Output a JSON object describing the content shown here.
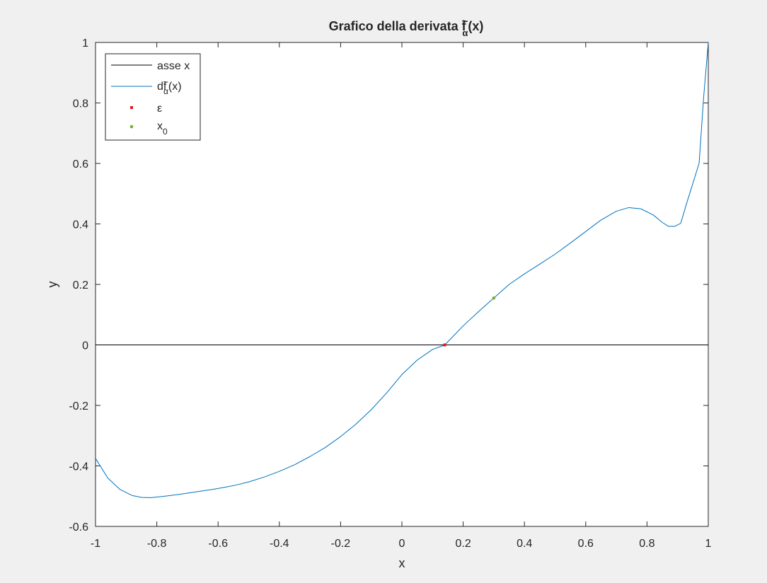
{
  "chart_data": {
    "type": "line",
    "title": {
      "main": "Grafico della derivata f",
      "accent": "~",
      "sub": "α",
      "tail": "(x)"
    },
    "xlabel": "x",
    "ylabel": "y",
    "xlim": [
      -1,
      1
    ],
    "ylim": [
      -0.6,
      1
    ],
    "xticks": [
      -1,
      -0.8,
      -0.6,
      -0.4,
      -0.2,
      0,
      0.2,
      0.4,
      0.6,
      0.8,
      1
    ],
    "xtick_labels": [
      "-1",
      "-0.8",
      "-0.6",
      "-0.4",
      "-0.2",
      "0",
      "0.2",
      "0.4",
      "0.6",
      "0.8",
      "1"
    ],
    "yticks": [
      -0.6,
      -0.4,
      -0.2,
      0,
      0.2,
      0.4,
      0.6,
      0.8,
      1
    ],
    "ytick_labels": [
      "-0.6",
      "-0.4",
      "-0.2",
      "0",
      "0.2",
      "0.4",
      "0.6",
      "0.8",
      "1"
    ],
    "grid": false,
    "legend_position": "top-left",
    "series": [
      {
        "name": "asse x",
        "kind": "line",
        "color": "#000000",
        "x": [
          -1,
          1
        ],
        "y": [
          0,
          0
        ]
      },
      {
        "name": "df",
        "name_accent": "~",
        "name_sub": "α",
        "name_tail": "(x)",
        "kind": "line",
        "color": "#0072bd",
        "x": [
          -1,
          -0.96,
          -0.92,
          -0.88,
          -0.85,
          -0.82,
          -0.78,
          -0.74,
          -0.7,
          -0.66,
          -0.62,
          -0.58,
          -0.54,
          -0.5,
          -0.45,
          -0.4,
          -0.35,
          -0.3,
          -0.25,
          -0.2,
          -0.15,
          -0.1,
          -0.05,
          0,
          0.05,
          0.1,
          0.14,
          0.2,
          0.25,
          0.3,
          0.35,
          0.4,
          0.45,
          0.5,
          0.55,
          0.6,
          0.65,
          0.7,
          0.74,
          0.78,
          0.82,
          0.85,
          0.87,
          0.89,
          0.91,
          0.93,
          0.95,
          0.97,
          0.985,
          1
        ],
        "y": [
          -0.375,
          -0.44,
          -0.478,
          -0.498,
          -0.504,
          -0.505,
          -0.501,
          -0.496,
          -0.49,
          -0.484,
          -0.478,
          -0.471,
          -0.463,
          -0.453,
          -0.437,
          -0.418,
          -0.396,
          -0.369,
          -0.339,
          -0.303,
          -0.262,
          -0.214,
          -0.159,
          -0.098,
          -0.05,
          -0.015,
          0.0,
          0.063,
          0.11,
          0.155,
          0.2,
          0.235,
          0.267,
          0.3,
          0.337,
          0.375,
          0.413,
          0.442,
          0.454,
          0.45,
          0.43,
          0.405,
          0.392,
          0.392,
          0.402,
          0.47,
          0.535,
          0.6,
          0.82,
          1.0
        ]
      },
      {
        "name": "ε",
        "kind": "marker",
        "marker": "square",
        "color": "#e8141e",
        "x": [
          0.14
        ],
        "y": [
          0
        ]
      },
      {
        "name": "x",
        "name_sub": "0",
        "kind": "marker",
        "marker": "dot",
        "color": "#77ac30",
        "x": [
          0.3
        ],
        "y": [
          0.155
        ]
      }
    ]
  }
}
